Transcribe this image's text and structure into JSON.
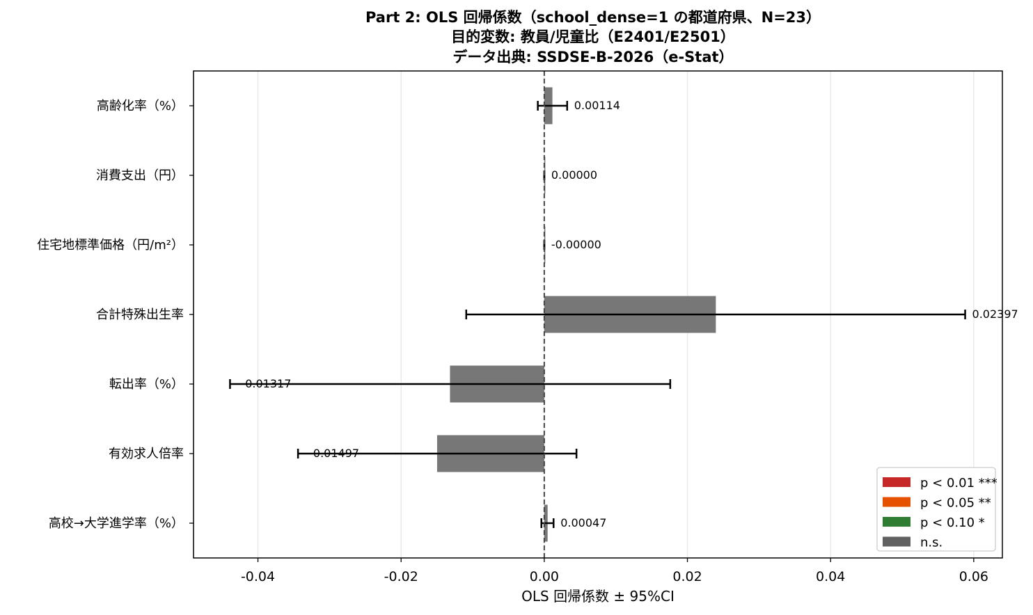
{
  "chart_data": {
    "type": "bar",
    "orientation": "horizontal",
    "title_lines": [
      "Part 2: OLS 回帰係数（school_dense=1 の都道府県、N=23）",
      "目的変数: 教員/児童比（E2401/E2501）",
      "データ出典: SSDSE-B-2026（e-Stat）"
    ],
    "xlabel": "OLS 回帰係数 ± 95%CI",
    "ylabel": "",
    "xlim": [
      -0.049,
      0.064
    ],
    "xticks": [
      -0.04,
      -0.02,
      0.0,
      0.02,
      0.04,
      0.06
    ],
    "xtick_labels": [
      "-0.04",
      "-0.02",
      "0.00",
      "0.02",
      "0.04",
      "0.06"
    ],
    "grid": "vertical",
    "zero_line": "dashed",
    "categories": [
      "高齢化率（%）",
      "消費支出（円）",
      "住宅地標準価格（円/m²）",
      "合計特殊出生率",
      "転出率（%）",
      "有効求人倍率",
      "高校→大学進学率（%）"
    ],
    "values": [
      0.00114,
      0.0,
      -0.0,
      0.02397,
      -0.01317,
      -0.01497,
      0.00047
    ],
    "value_labels": [
      "0.00114",
      "0.00000",
      "-0.00000",
      "0.02397",
      "-0.01317",
      "-0.01497",
      "0.00047"
    ],
    "ci_low": [
      -0.0009,
      0.0,
      0.0,
      -0.0109,
      -0.0439,
      -0.0344,
      -0.0004
    ],
    "ci_high": [
      0.0032,
      0.0,
      0.0,
      0.0588,
      0.0176,
      0.0045,
      0.0013
    ],
    "significance": [
      "n.s.",
      "n.s.",
      "n.s.",
      "n.s.",
      "n.s.",
      "n.s.",
      "n.s."
    ],
    "legend": {
      "position": "lower-right",
      "items": [
        {
          "label": "p < 0.01 ***",
          "color": "#c62828"
        },
        {
          "label": "p < 0.05 **",
          "color": "#e65100"
        },
        {
          "label": "p < 0.10 *",
          "color": "#2e7d32"
        },
        {
          "label": "n.s.",
          "color": "#616161"
        }
      ]
    }
  }
}
